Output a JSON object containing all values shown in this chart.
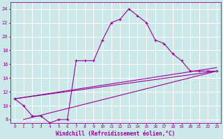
{
  "xlabel": "Windchill (Refroidissement éolien,°C)",
  "bg_color": "#cce8e8",
  "line_color": "#990099",
  "grid_color": "#ffffff",
  "xlim": [
    -0.5,
    23.5
  ],
  "ylim": [
    7.5,
    25
  ],
  "yticks": [
    8,
    10,
    12,
    14,
    16,
    18,
    20,
    22,
    24
  ],
  "xticks": [
    0,
    1,
    2,
    3,
    4,
    5,
    6,
    7,
    8,
    9,
    10,
    11,
    12,
    13,
    14,
    15,
    16,
    17,
    18,
    19,
    20,
    21,
    22,
    23
  ],
  "line1_x": [
    0,
    1,
    2,
    3,
    4,
    5,
    6,
    7,
    8,
    9,
    10,
    11,
    12,
    13,
    14,
    15,
    16,
    17,
    18,
    19,
    20,
    21,
    22,
    23
  ],
  "line1_y": [
    11,
    10,
    8.5,
    8.5,
    7.5,
    8,
    8,
    16.5,
    16.5,
    16.5,
    19.5,
    22,
    22.5,
    24,
    23,
    22,
    19.5,
    19,
    17.5,
    16.5,
    15,
    15,
    15,
    15
  ],
  "line2_x": [
    0,
    23
  ],
  "line2_y": [
    11,
    15.5
  ],
  "line3_x": [
    0,
    23
  ],
  "line3_y": [
    11,
    15
  ],
  "line4_x": [
    1,
    23
  ],
  "line4_y": [
    8,
    15
  ]
}
